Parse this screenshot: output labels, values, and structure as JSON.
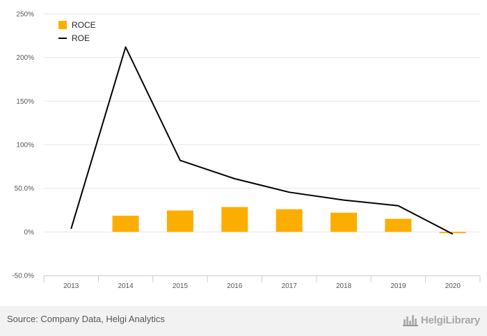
{
  "chart_data": {
    "type": "bar+line",
    "title": "",
    "xlabel": "",
    "ylabel": "",
    "categories": [
      "2013",
      "2014",
      "2015",
      "2016",
      "2017",
      "2018",
      "2019",
      "2020"
    ],
    "ylim": [
      -50,
      250
    ],
    "yticks": [
      -50,
      0,
      50,
      100,
      150,
      200,
      250
    ],
    "ytick_labels": [
      "-50.0%",
      "0%",
      "50.0%",
      "100%",
      "150%",
      "200%",
      "250%"
    ],
    "grid": true,
    "legend_position": "top-left",
    "series": [
      {
        "name": "ROCE",
        "type": "bar",
        "color": "#fcae00",
        "values": [
          null,
          18.5,
          24.5,
          28.5,
          26.0,
          22.0,
          15.0,
          -1.5
        ]
      },
      {
        "name": "ROE",
        "type": "line",
        "color": "#000000",
        "values": [
          3.5,
          212.0,
          82.0,
          61.0,
          45.5,
          36.5,
          30.0,
          -2.5
        ]
      }
    ]
  },
  "footer": {
    "source": "Source: Company Data, Helgi Analytics",
    "logo_text": "HelgiLibrary",
    "logo_icon": "city-skyline-icon"
  }
}
